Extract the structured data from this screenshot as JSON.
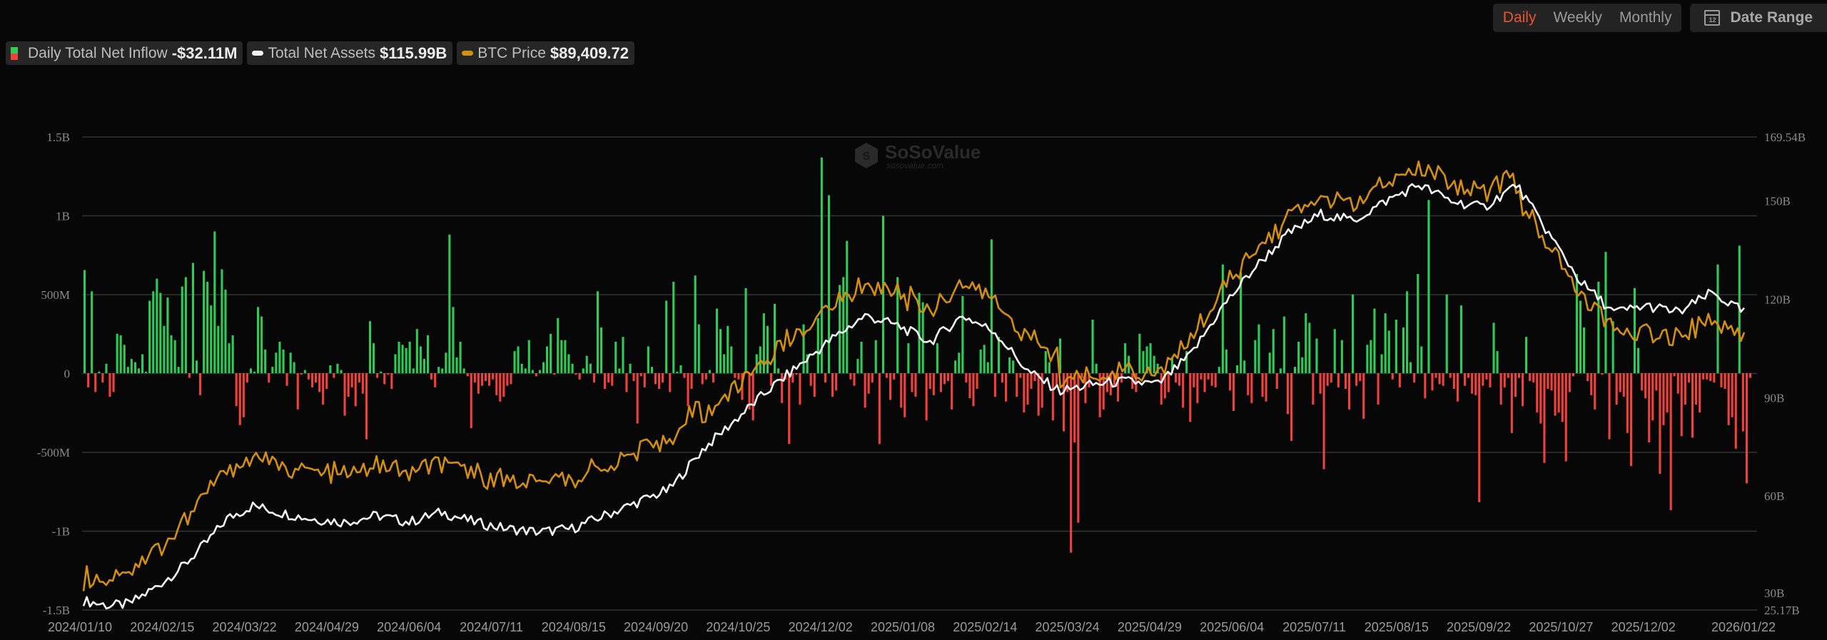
{
  "legend": {
    "inflow": {
      "label": "Daily Total Net Inflow",
      "value": "-$32.11M"
    },
    "assets": {
      "label": "Total Net Assets",
      "value": "$115.99B"
    },
    "btc": {
      "label": "BTC Price",
      "value": "$89,409.72"
    }
  },
  "toolbar": {
    "periods": [
      "Daily",
      "Weekly",
      "Monthly"
    ],
    "active_period": "Daily",
    "date_range_label": "Date Range",
    "calendar_icon_text": "12"
  },
  "watermark": {
    "brand": "SoSoValue",
    "site": "sosovalue.com"
  },
  "colors": {
    "positive": "#2ecc55",
    "negative": "#f0413a",
    "assets_line": "#f2f2f2",
    "btc_line": "#d48f0f",
    "grid": "#333333",
    "active": "#e8552b"
  },
  "chart_data": {
    "type": "bar+line",
    "title": "",
    "left_axis": {
      "label": "Daily Total Net Inflow",
      "ticks": [
        "1.5B",
        "1B",
        "500M",
        "0",
        "-500M",
        "-1B",
        "-1.5B"
      ],
      "range": [
        -1.5,
        1.5
      ],
      "unit": "B USD"
    },
    "right_axis": {
      "label": "Total Net Assets",
      "ticks": [
        "169.54B",
        "150B",
        "120B",
        "90B",
        "60B",
        "30B",
        "25.17B"
      ],
      "range": [
        25.17,
        169.54
      ],
      "unit": "B USD"
    },
    "x_ticks": [
      "2024/01/10",
      "2024/02/15",
      "2024/03/22",
      "2024/04/29",
      "2024/06/04",
      "2024/07/11",
      "2024/08/15",
      "2024/09/20",
      "2024/10/25",
      "2024/12/02",
      "2025/01/08",
      "2025/02/14",
      "2025/03/24",
      "2025/04/29",
      "2025/06/04",
      "2025/07/11",
      "2025/08/15",
      "2025/09/22",
      "2025/10/27",
      "2025/12/02",
      "2026/01/22"
    ],
    "grid": true,
    "legend_position": "top-left",
    "series": [
      {
        "name": "Daily Total Net Inflow",
        "type": "bar",
        "axis": "left",
        "unit": "M USD",
        "keypoints_x_index": [
          0,
          20,
          42,
          64,
          86,
          108,
          130,
          152,
          174,
          196,
          218,
          240,
          262,
          284,
          306,
          328,
          350,
          372,
          394,
          416,
          440
        ],
        "values": [
          655,
          -90,
          520,
          -120,
          10,
          -60,
          60,
          -150,
          -120,
          250,
          240,
          180,
          40,
          90,
          70,
          30,
          120,
          10,
          460,
          520,
          600,
          510,
          300,
          480,
          240,
          210,
          40,
          550,
          610,
          -30,
          700,
          80,
          -140,
          650,
          580,
          430,
          900,
          300,
          660,
          530,
          190,
          240,
          -210,
          -330,
          -280,
          -60,
          30,
          10,
          420,
          360,
          150,
          -60,
          40,
          130,
          200,
          150,
          -80,
          130,
          70,
          -230,
          -10,
          20,
          -40,
          -90,
          -60,
          -120,
          -200,
          -100,
          50,
          -30,
          60,
          20,
          -270,
          -150,
          -90,
          -210,
          -60,
          -130,
          -420,
          330,
          190,
          -30,
          10,
          -70,
          -10,
          -100,
          120,
          200,
          180,
          160,
          200,
          30,
          280,
          170,
          90,
          240,
          -40,
          -90,
          40,
          30,
          130,
          880,
          420,
          100,
          200,
          30,
          -20,
          -350,
          -60,
          -130,
          -80,
          -50,
          -80,
          -40,
          -140,
          -180,
          -150,
          -80,
          -70,
          140,
          170,
          60,
          30,
          210,
          20,
          -20,
          20,
          70,
          170,
          250,
          -10,
          350,
          210,
          210,
          120,
          60,
          -10,
          -40,
          30,
          110,
          60,
          -60,
          520,
          290,
          -100,
          -60,
          -80,
          200,
          30,
          230,
          -120,
          60,
          -50,
          -320,
          -20,
          -90,
          170,
          40,
          -70,
          -100,
          -60,
          460,
          -120,
          580,
          10,
          50,
          -30,
          -210,
          -100,
          620,
          310,
          -70,
          -40,
          20,
          -60,
          410,
          280,
          120,
          300,
          170,
          -30,
          -40,
          -170,
          540,
          -230,
          -300,
          120,
          170,
          380,
          300,
          -80,
          440,
          30,
          -190,
          -40,
          -450,
          -60,
          -10,
          -200,
          310,
          120,
          -80,
          -150,
          350,
          1370,
          -60,
          1130,
          -150,
          -110,
          560,
          610,
          840,
          -40,
          -80,
          90,
          200,
          -220,
          -130,
          -60,
          210,
          -450,
          1000,
          -30,
          -170,
          -40,
          610,
          -220,
          -280,
          190,
          -120,
          -150,
          510,
          450,
          -300,
          -100,
          -140,
          190,
          -120,
          -70,
          -50,
          -230,
          80,
          130,
          490,
          -60,
          -160,
          -210,
          -100,
          150,
          180,
          70,
          850,
          -150,
          230,
          -60,
          -180,
          100,
          80,
          -150,
          -30,
          -250,
          -200,
          -100,
          -50,
          -270,
          -220,
          140,
          70,
          -300,
          -80,
          220,
          -370,
          -120,
          -1140,
          -440,
          -950,
          -30,
          -190,
          -90,
          340,
          60,
          -280,
          -230,
          -120,
          -140,
          -80,
          -180,
          -60,
          190,
          110,
          -100,
          -120,
          250,
          140,
          170,
          190,
          110,
          60,
          -200,
          -160,
          -120,
          100,
          -60,
          -80,
          -220,
          140,
          -310,
          -90,
          -190,
          -40,
          -120,
          -40,
          -80,
          -90,
          40,
          690,
          150,
          -110,
          -240,
          50,
          640,
          80,
          -140,
          -190,
          210,
          310,
          -150,
          -180,
          130,
          280,
          -100,
          30,
          360,
          -260,
          -430,
          40,
          200,
          100,
          380,
          320,
          -200,
          220,
          -130,
          -610,
          -80,
          -60,
          280,
          -90,
          210,
          -100,
          -230,
          500,
          -80,
          -50,
          -290,
          180,
          210,
          410,
          -200,
          120,
          380,
          270,
          -40,
          340,
          -90,
          290,
          520,
          70,
          -60,
          630,
          170,
          -160,
          1100,
          -110,
          -30,
          -70,
          -80,
          500,
          -30,
          -100,
          -180,
          430,
          -80,
          -30,
          -130,
          -140,
          -820,
          -80,
          -40,
          -90,
          320,
          140,
          -200,
          -90,
          -30,
          -380,
          -150,
          -30,
          -210,
          230,
          -50,
          -60,
          -250,
          -320,
          -570,
          -100,
          -110,
          -270,
          -250,
          -310,
          -560,
          -120,
          -20,
          630,
          460,
          290,
          -50,
          -140,
          -230,
          580,
          -10,
          770,
          -420,
          330,
          -200,
          -120,
          -150,
          -380,
          -590,
          540,
          160,
          -110,
          -160,
          -440,
          -300,
          -110,
          -640,
          -330,
          -250,
          -870,
          -20,
          -130,
          -400,
          -200,
          -60,
          -410,
          -200,
          -250,
          -40,
          -40,
          -50,
          -60,
          690,
          -90,
          -100,
          -330,
          -280,
          -480,
          810,
          -370,
          -700,
          -30
        ]
      },
      {
        "name": "Total Net Assets",
        "type": "line",
        "axis": "right",
        "unit": "B USD",
        "approx_points": [
          [
            0,
            28
          ],
          [
            8,
            26.5
          ],
          [
            14,
            27
          ],
          [
            22,
            32
          ],
          [
            30,
            38
          ],
          [
            38,
            46
          ],
          [
            44,
            53
          ],
          [
            52,
            57
          ],
          [
            60,
            55
          ],
          [
            70,
            53
          ],
          [
            80,
            52
          ],
          [
            90,
            54
          ],
          [
            100,
            52
          ],
          [
            110,
            55
          ],
          [
            120,
            52
          ],
          [
            130,
            50
          ],
          [
            140,
            49
          ],
          [
            150,
            50
          ],
          [
            160,
            54
          ],
          [
            170,
            58
          ],
          [
            180,
            62
          ],
          [
            190,
            74
          ],
          [
            200,
            83
          ],
          [
            210,
            92
          ],
          [
            220,
            100
          ],
          [
            230,
            108
          ],
          [
            240,
            115
          ],
          [
            250,
            112
          ],
          [
            260,
            107
          ],
          [
            270,
            115
          ],
          [
            280,
            110
          ],
          [
            290,
            98
          ],
          [
            300,
            92
          ],
          [
            310,
            94
          ],
          [
            320,
            95
          ],
          [
            330,
            94
          ],
          [
            340,
            103
          ],
          [
            350,
            118
          ],
          [
            360,
            130
          ],
          [
            370,
            140
          ],
          [
            380,
            146
          ],
          [
            390,
            144
          ],
          [
            400,
            150
          ],
          [
            410,
            155
          ],
          [
            420,
            150
          ],
          [
            430,
            148
          ],
          [
            440,
            155
          ],
          [
            450,
            140
          ],
          [
            460,
            125
          ],
          [
            470,
            116
          ],
          [
            480,
            118
          ],
          [
            490,
            116
          ],
          [
            500,
            122
          ],
          [
            510,
            116
          ]
        ]
      },
      {
        "name": "BTC Price",
        "type": "line",
        "axis": "right-scaled",
        "unit": "USD",
        "last_value": 89409.72
      }
    ]
  }
}
